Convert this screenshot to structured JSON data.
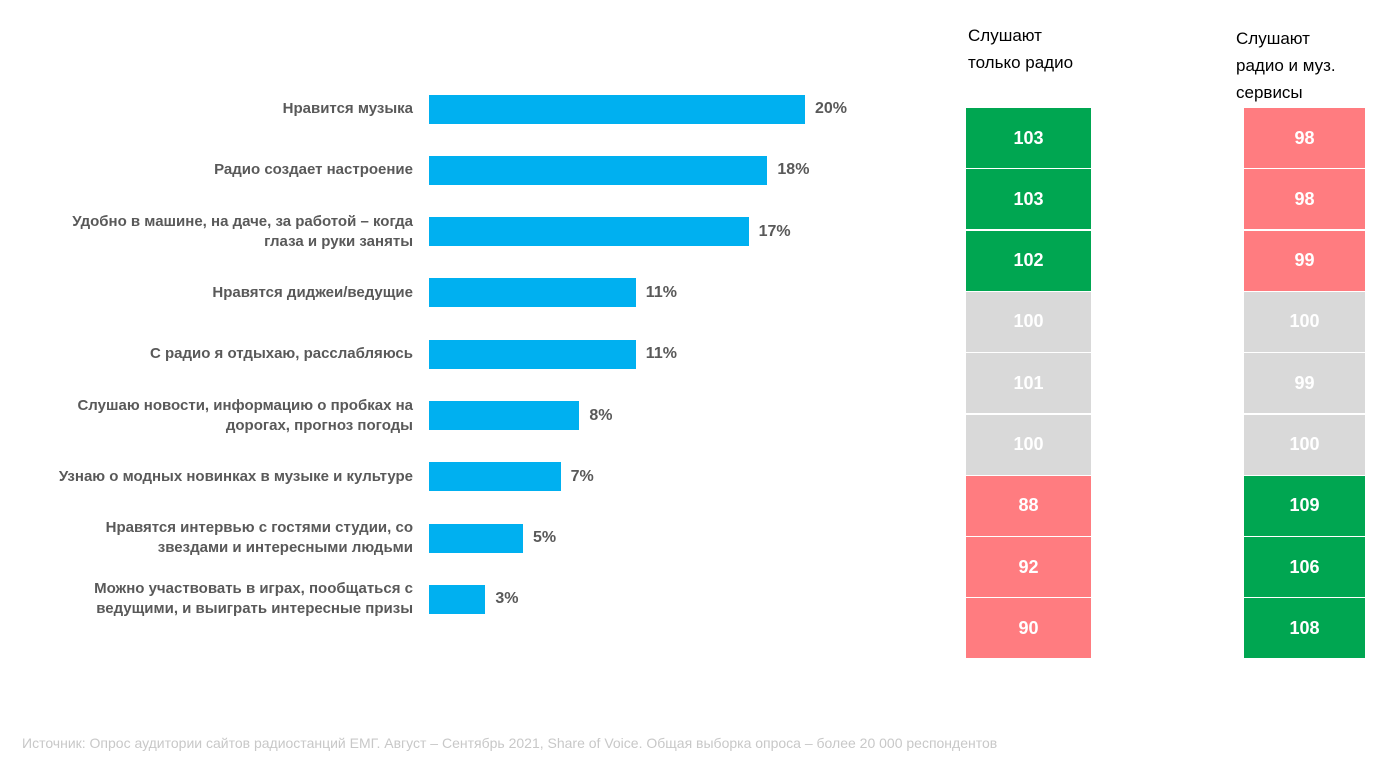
{
  "chart_data": {
    "type": "bar",
    "orientation": "horizontal",
    "categories": [
      "Нравится музыка",
      "Радио создает настроение",
      "Удобно в машине, на даче, за работой – когда глаза и руки заняты",
      "Нравятся  диджеи/ведущие",
      "С радио я отдыхаю, расслабляюсь",
      "Слушаю новости, информацию о пробках на дорогах, прогноз погоды",
      "Узнаю о модных новинках в музыке и культуре",
      "Нравятся интервью с гостями студии, со звездами и интересными людьми",
      "Можно участвовать в играх, пообщаться с ведущими, и выиграть интересные призы"
    ],
    "category_lines": [
      [
        "Нравится музыка"
      ],
      [
        "Радио создает настроение"
      ],
      [
        "Удобно в машине, на даче, за работой – когда",
        "глаза и руки заняты"
      ],
      [
        "Нравятся  диджеи/ведущие"
      ],
      [
        "С радио я отдыхаю, расслабляюсь"
      ],
      [
        "Слушаю новости, информацию о пробках на",
        "дорогах, прогноз погоды"
      ],
      [
        "Узнаю о модных новинках в музыке и культуре"
      ],
      [
        "Нравятся интервью с гостями студии, со",
        "звездами и интересными людьми"
      ],
      [
        "Можно участвовать в играх, пообщаться с",
        "ведущими, и выиграть интересные призы"
      ]
    ],
    "values": [
      20,
      18,
      17,
      11,
      11,
      8,
      7,
      5,
      3
    ],
    "value_labels": [
      "20%",
      "18%",
      "17%",
      "11%",
      "11%",
      "8%",
      "7%",
      "5%",
      "3%"
    ],
    "unit": "%",
    "xlim": [
      0,
      20
    ],
    "grid": false,
    "bar_color": "#00b0f0",
    "index_columns": [
      {
        "header": [
          "Слушают",
          "только радио"
        ],
        "values": [
          103,
          103,
          102,
          100,
          101,
          100,
          88,
          92,
          90
        ],
        "colors": [
          "#00a651",
          "#00a651",
          "#00a651",
          "#d9d9d9",
          "#d9d9d9",
          "#d9d9d9",
          "#ff7c80",
          "#ff7c80",
          "#ff7c80"
        ]
      },
      {
        "header": [
          "Слушают",
          "радио и муз.",
          "сервисы"
        ],
        "values": [
          98,
          98,
          99,
          100,
          99,
          100,
          109,
          106,
          108
        ],
        "colors": [
          "#ff7c80",
          "#ff7c80",
          "#ff7c80",
          "#d9d9d9",
          "#d9d9d9",
          "#d9d9d9",
          "#00a651",
          "#00a651",
          "#00a651"
        ]
      }
    ]
  },
  "footnote": "Источник: Опрос аудитории сайтов радиостанций ЕМГ. Август – Сентябрь 2021, Share of Voice. Общая выборка опроса – более 20 000 респондентов"
}
